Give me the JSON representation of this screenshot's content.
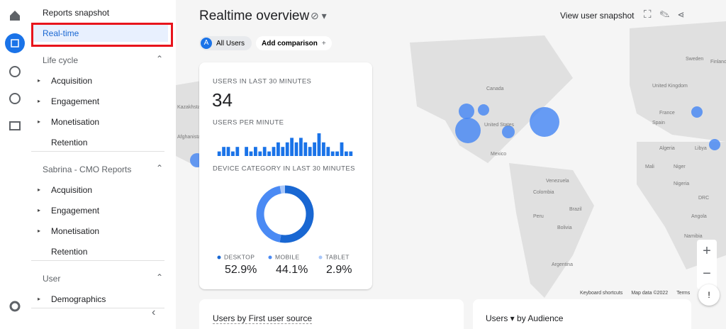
{
  "sidebar": {
    "top": [
      "Reports snapshot",
      "Real-time"
    ],
    "sections": [
      {
        "title": "Life cycle",
        "items": [
          "Acquisition",
          "Engagement",
          "Monetisation",
          "Retention"
        ]
      },
      {
        "title": "Sabrina - CMO Reports",
        "items": [
          "Acquisition",
          "Engagement",
          "Monetisation",
          "Retention"
        ]
      },
      {
        "title": "User",
        "items": [
          "Demographics"
        ]
      }
    ]
  },
  "header": {
    "title": "Realtime overview",
    "snapshot": "View user snapshot",
    "chips": {
      "avatar": "A",
      "users": "All Users",
      "compare": "Add comparison"
    }
  },
  "card": {
    "users_title": "USERS IN LAST 30 MINUTES",
    "users": "34",
    "per_minute_title": "USERS PER MINUTE",
    "chart_data": {
      "type": "bar",
      "values": [
        1,
        2,
        2,
        1,
        2,
        0,
        2,
        1,
        2,
        1,
        2,
        1,
        2,
        3,
        2,
        3,
        4,
        3,
        4,
        3,
        2,
        3,
        5,
        3,
        2,
        1,
        1,
        3,
        1,
        1
      ],
      "color": "#1a73e8"
    },
    "device_title": "DEVICE CATEGORY IN LAST 30 MINUTES",
    "device_chart": {
      "type": "pie",
      "categories": [
        "DESKTOP",
        "MOBILE",
        "TABLET"
      ],
      "values": [
        52.9,
        44.1,
        2.9
      ],
      "value_labels": [
        "52.9%",
        "44.1%",
        "2.9%"
      ],
      "colors": [
        "#1967d2",
        "#4a8af4",
        "#a8c7fa"
      ]
    }
  },
  "map": {
    "labels": [
      "Canada",
      "United States",
      "Mexico",
      "Venezuela",
      "Colombia",
      "Peru",
      "Brazil",
      "Bolivia",
      "Argentina",
      "Sweden",
      "Finland",
      "United Kingdom",
      "France",
      "Spain",
      "Algeria",
      "Libya",
      "Mali",
      "Niger",
      "Nigeria",
      "DRC",
      "Angola",
      "Namibia",
      "Afghanistan",
      "Kazakhstan"
    ],
    "footer": [
      "Keyboard shortcuts",
      "Map data ©2022",
      "Terms"
    ]
  },
  "bottom_cards": {
    "left": "Users by First user source",
    "right_a": "Users",
    "right_b": "by Audience"
  }
}
